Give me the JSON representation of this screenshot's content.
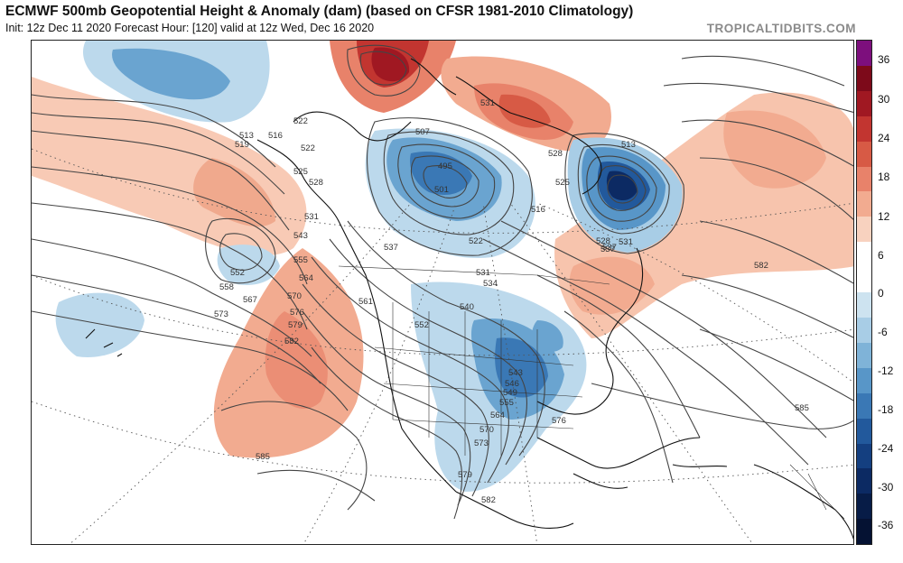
{
  "header": {
    "title": "ECMWF 500mb Geopotential Height & Anomaly (dam) (based on CFSR 1981-2010 Climatology)",
    "subtitle": "Init: 12z Dec 11 2020   Forecast Hour: [120]   valid at 12z Wed, Dec 16 2020",
    "brand": "TROPICALTIDBITS.COM"
  },
  "colorbar": {
    "ticks": [
      "36",
      "30",
      "24",
      "18",
      "12",
      "6",
      "0",
      "-6",
      "-12",
      "-18",
      "-24",
      "-30",
      "-36"
    ],
    "colors": [
      "#7d0f7d",
      "#7d0a1a",
      "#a01822",
      "#c23530",
      "#d75a45",
      "#e8826a",
      "#f2ab90",
      "#f8d2bf",
      "#ffffff",
      "#ffffff",
      "#cde3f0",
      "#a8cde6",
      "#7fb3d8",
      "#5896c8",
      "#3a78b5",
      "#22599c",
      "#143f80",
      "#0c2a63",
      "#071c47",
      "#051233"
    ]
  },
  "map": {
    "contour_labels": [
      "513",
      "516",
      "519",
      "522",
      "522",
      "525",
      "528",
      "507",
      "501",
      "495",
      "516",
      "531",
      "531",
      "528",
      "513",
      "522",
      "525",
      "528",
      "537",
      "531",
      "534",
      "537",
      "540",
      "543",
      "552",
      "552",
      "555",
      "558",
      "561",
      "564",
      "567",
      "570",
      "573",
      "576",
      "579",
      "582",
      "543",
      "546",
      "549",
      "555",
      "564",
      "570",
      "573",
      "576",
      "579",
      "582",
      "582",
      "585",
      "585",
      "537",
      "531"
    ],
    "anomaly_colors": {
      "positive_strong": "#b31d24",
      "positive_mid": "#e67b62",
      "positive_weak": "#f7c4ad",
      "negative_weak": "#bcd9ec",
      "negative_mid": "#6aa4d0",
      "negative_strong": "#1c4f91"
    }
  }
}
